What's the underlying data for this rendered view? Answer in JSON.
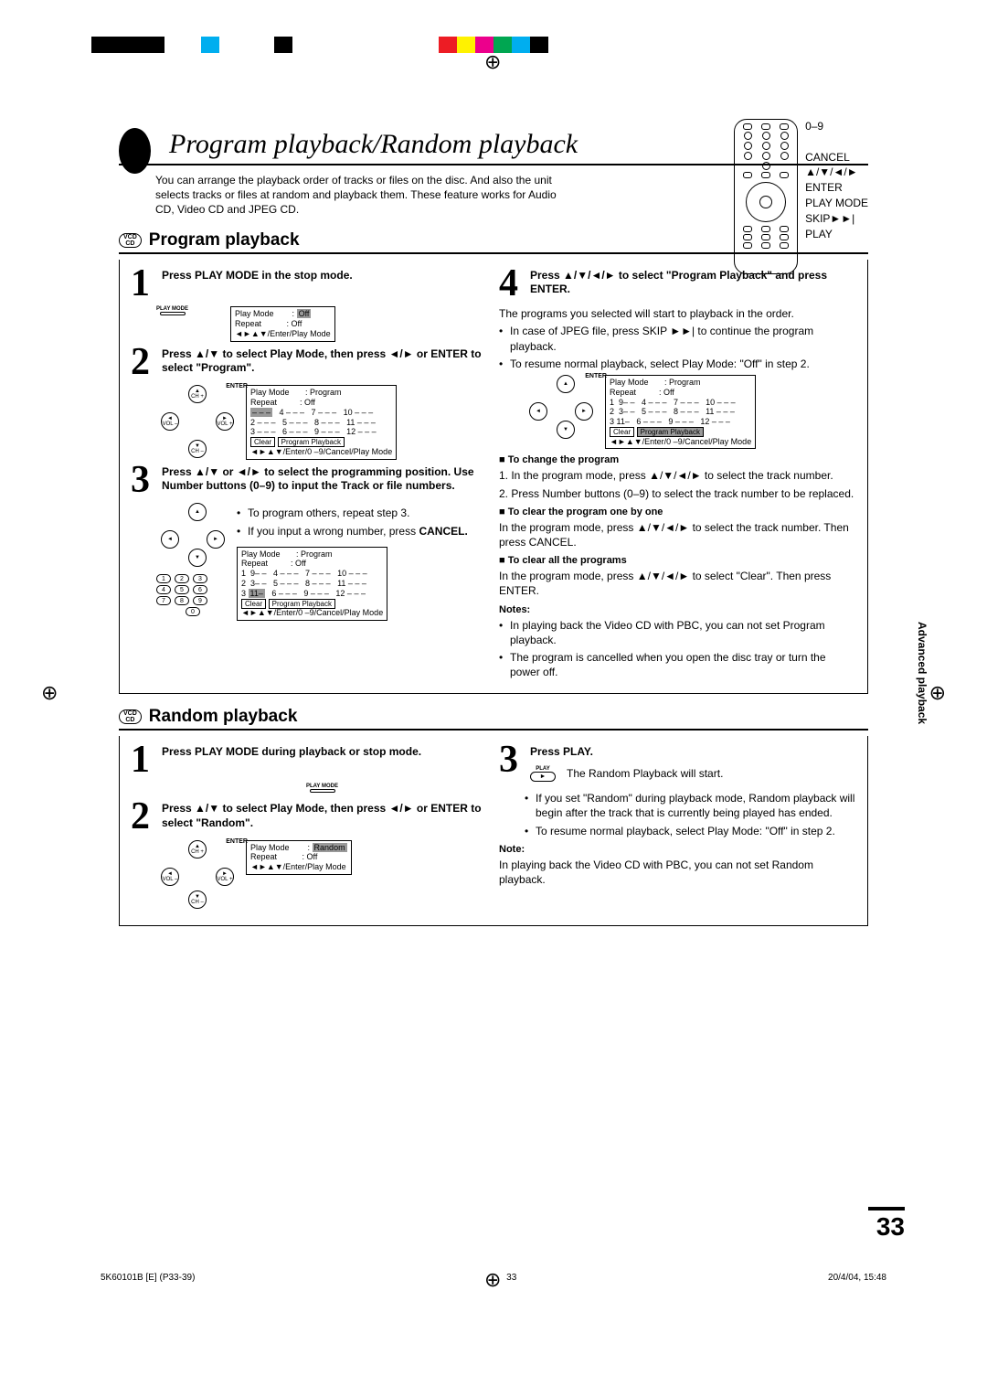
{
  "colorbar": [
    "#000000",
    "#000000",
    "#000000",
    "#000000",
    "#ffffff",
    "#ffffff",
    "#00aeef",
    "#ffffff",
    "#ffffff",
    "#ffffff",
    "#000000",
    "#ffffff",
    "#ffffff",
    "#ffffff",
    "#ffffff",
    "#ffffff",
    "#ffffff",
    "#ffffff",
    "#ffffff",
    "#ed1c24",
    "#fff200",
    "#ec008c",
    "#00a651",
    "#00aeef",
    "#000000"
  ],
  "main_title": "Program playback/Random playback",
  "intro": "You can arrange the playback order of tracks or files on the disc. And also the unit selects tracks or files at random and playback them. These feature works for Audio CD, Video CD and JPEG CD.",
  "remote_labels": [
    "0–9",
    "",
    "CANCEL",
    "▲/▼/◄/►",
    "ENTER",
    "PLAY MODE",
    "SKIP►►|",
    "PLAY"
  ],
  "disc_types": "VCD\nCD",
  "section1": {
    "title": "Program playback",
    "step1": "Press PLAY MODE in the stop mode.",
    "play_mode_label": "PLAY MODE",
    "osd1": {
      "l1": "Play Mode        :",
      "v1": "Off",
      "l2": "Repeat           : Off",
      "l3": "◄►▲▼/Enter/Play Mode"
    },
    "step2": "Press ▲/▼ to select Play Mode, then press ◄/► or ENTER to select \"Program\".",
    "enter": "ENTER",
    "dpad": {
      "up": "▲\nCH +",
      "dn": "▼\nCH –",
      "lf": "◄\nVOL –",
      "rt": "►\nVOL +"
    },
    "osd2": {
      "l1": "Play Mode       : Program",
      "l2": "Repeat          : Off",
      "r1": "1 – – –   4 – – –   7 – – –   10 – – –",
      "r2": "2 – – –   5 – – –   8 – – –   11 – – –",
      "r3": "3 – – –   6 – – –   9 – – –   12 – – –",
      "b1": "Clear",
      "b2": "Program Playback",
      "l3": "◄►▲▼/Enter/0 –9/Cancel/Play Mode"
    },
    "step3": "Press ▲/▼ or ◄/► to select the programming position. Use Number buttons (0–9) to input the Track or file numbers.",
    "s3b1": "To program others, repeat step 3.",
    "s3b2": "If you input a wrong number, press",
    "s3b3": "CANCEL.",
    "osd3": {
      "l1": "Play Mode       : Program",
      "l2": "Repeat          : Off",
      "r1": "1  9– –   4 – – –   7 – – –   10 – – –",
      "r2": "2  3– –   5 – – –   8 – – –   11 – – –",
      "r3_a": "3 ",
      "r3_b": "11–",
      "r3_c": "   6 – – –   9 – – –   12 – – –",
      "b1": "Clear",
      "b2": "Program Playback",
      "l3": "◄►▲▼/Enter/0 –9/Cancel/Play Mode"
    },
    "step4": "Press ▲/▼/◄/► to select \"Program Playback\" and press ENTER.",
    "s4p1": "The programs you selected will start to playback in the order.",
    "s4b1": "In case of JPEG file, press SKIP ►►|  to continue the program playback.",
    "s4b2": "To resume normal playback, select Play Mode: \"Off\" in step 2.",
    "osd4": {
      "l1": "Play Mode       : Program",
      "l2": "Repeat          : Off",
      "r1": "1  9– –   4 – – –   7 – – –   10 – – –",
      "r2": "2  3– –   5 – – –   8 – – –   11 – – –",
      "r3": "3 11–   6 – – –   9 – – –   12 – – –",
      "b1": "Clear",
      "b2": "Program Playback",
      "l3": "◄►▲▼/Enter/0 –9/Cancel/Play Mode"
    },
    "chg_h": "To change the program",
    "chg_1": "1. In the program mode, press ▲/▼/◄/► to select the track number.",
    "chg_2": "2. Press Number buttons (0–9) to select the track number to be replaced.",
    "clr1_h": "To clear the program one by one",
    "clr1_t": "In the program mode, press ▲/▼/◄/► to select the track number. Then press CANCEL.",
    "clr2_h": "To clear all the programs",
    "clr2_t": "In the program mode, press ▲/▼/◄/► to select \"Clear\". Then press ENTER.",
    "notes_h": "Notes:",
    "note1": "In playing back the Video CD with PBC, you can not set Program playback.",
    "note2": "The program is cancelled when you open the disc tray or turn the power off."
  },
  "section2": {
    "title": "Random playback",
    "step1": "Press PLAY MODE during playback or stop mode.",
    "step2": "Press ▲/▼ to select Play Mode, then press ◄/► or ENTER to select \"Random\".",
    "osd": {
      "l1": "Play Mode        :",
      "v1": "Random",
      "l2": "Repeat           : Off",
      "l3": "◄►▲▼/Enter/Play Mode"
    },
    "step3": "Press PLAY.",
    "play_label": "PLAY",
    "s3p1": "The Random Playback will start.",
    "s3b1": "If you set \"Random\" during playback mode, Random playback will begin after the track that is currently being played has ended.",
    "s3b2": "To resume normal playback, select Play Mode: \"Off\" in step 2.",
    "note_h": "Note:",
    "note": "In playing back the Video CD with PBC, you can not set Random playback."
  },
  "side_tab": "Advanced playback",
  "page_number": "33",
  "footer": {
    "left": "5K60101B [E] (P33-39)",
    "mid": "33",
    "right": "20/4/04, 15:48"
  }
}
